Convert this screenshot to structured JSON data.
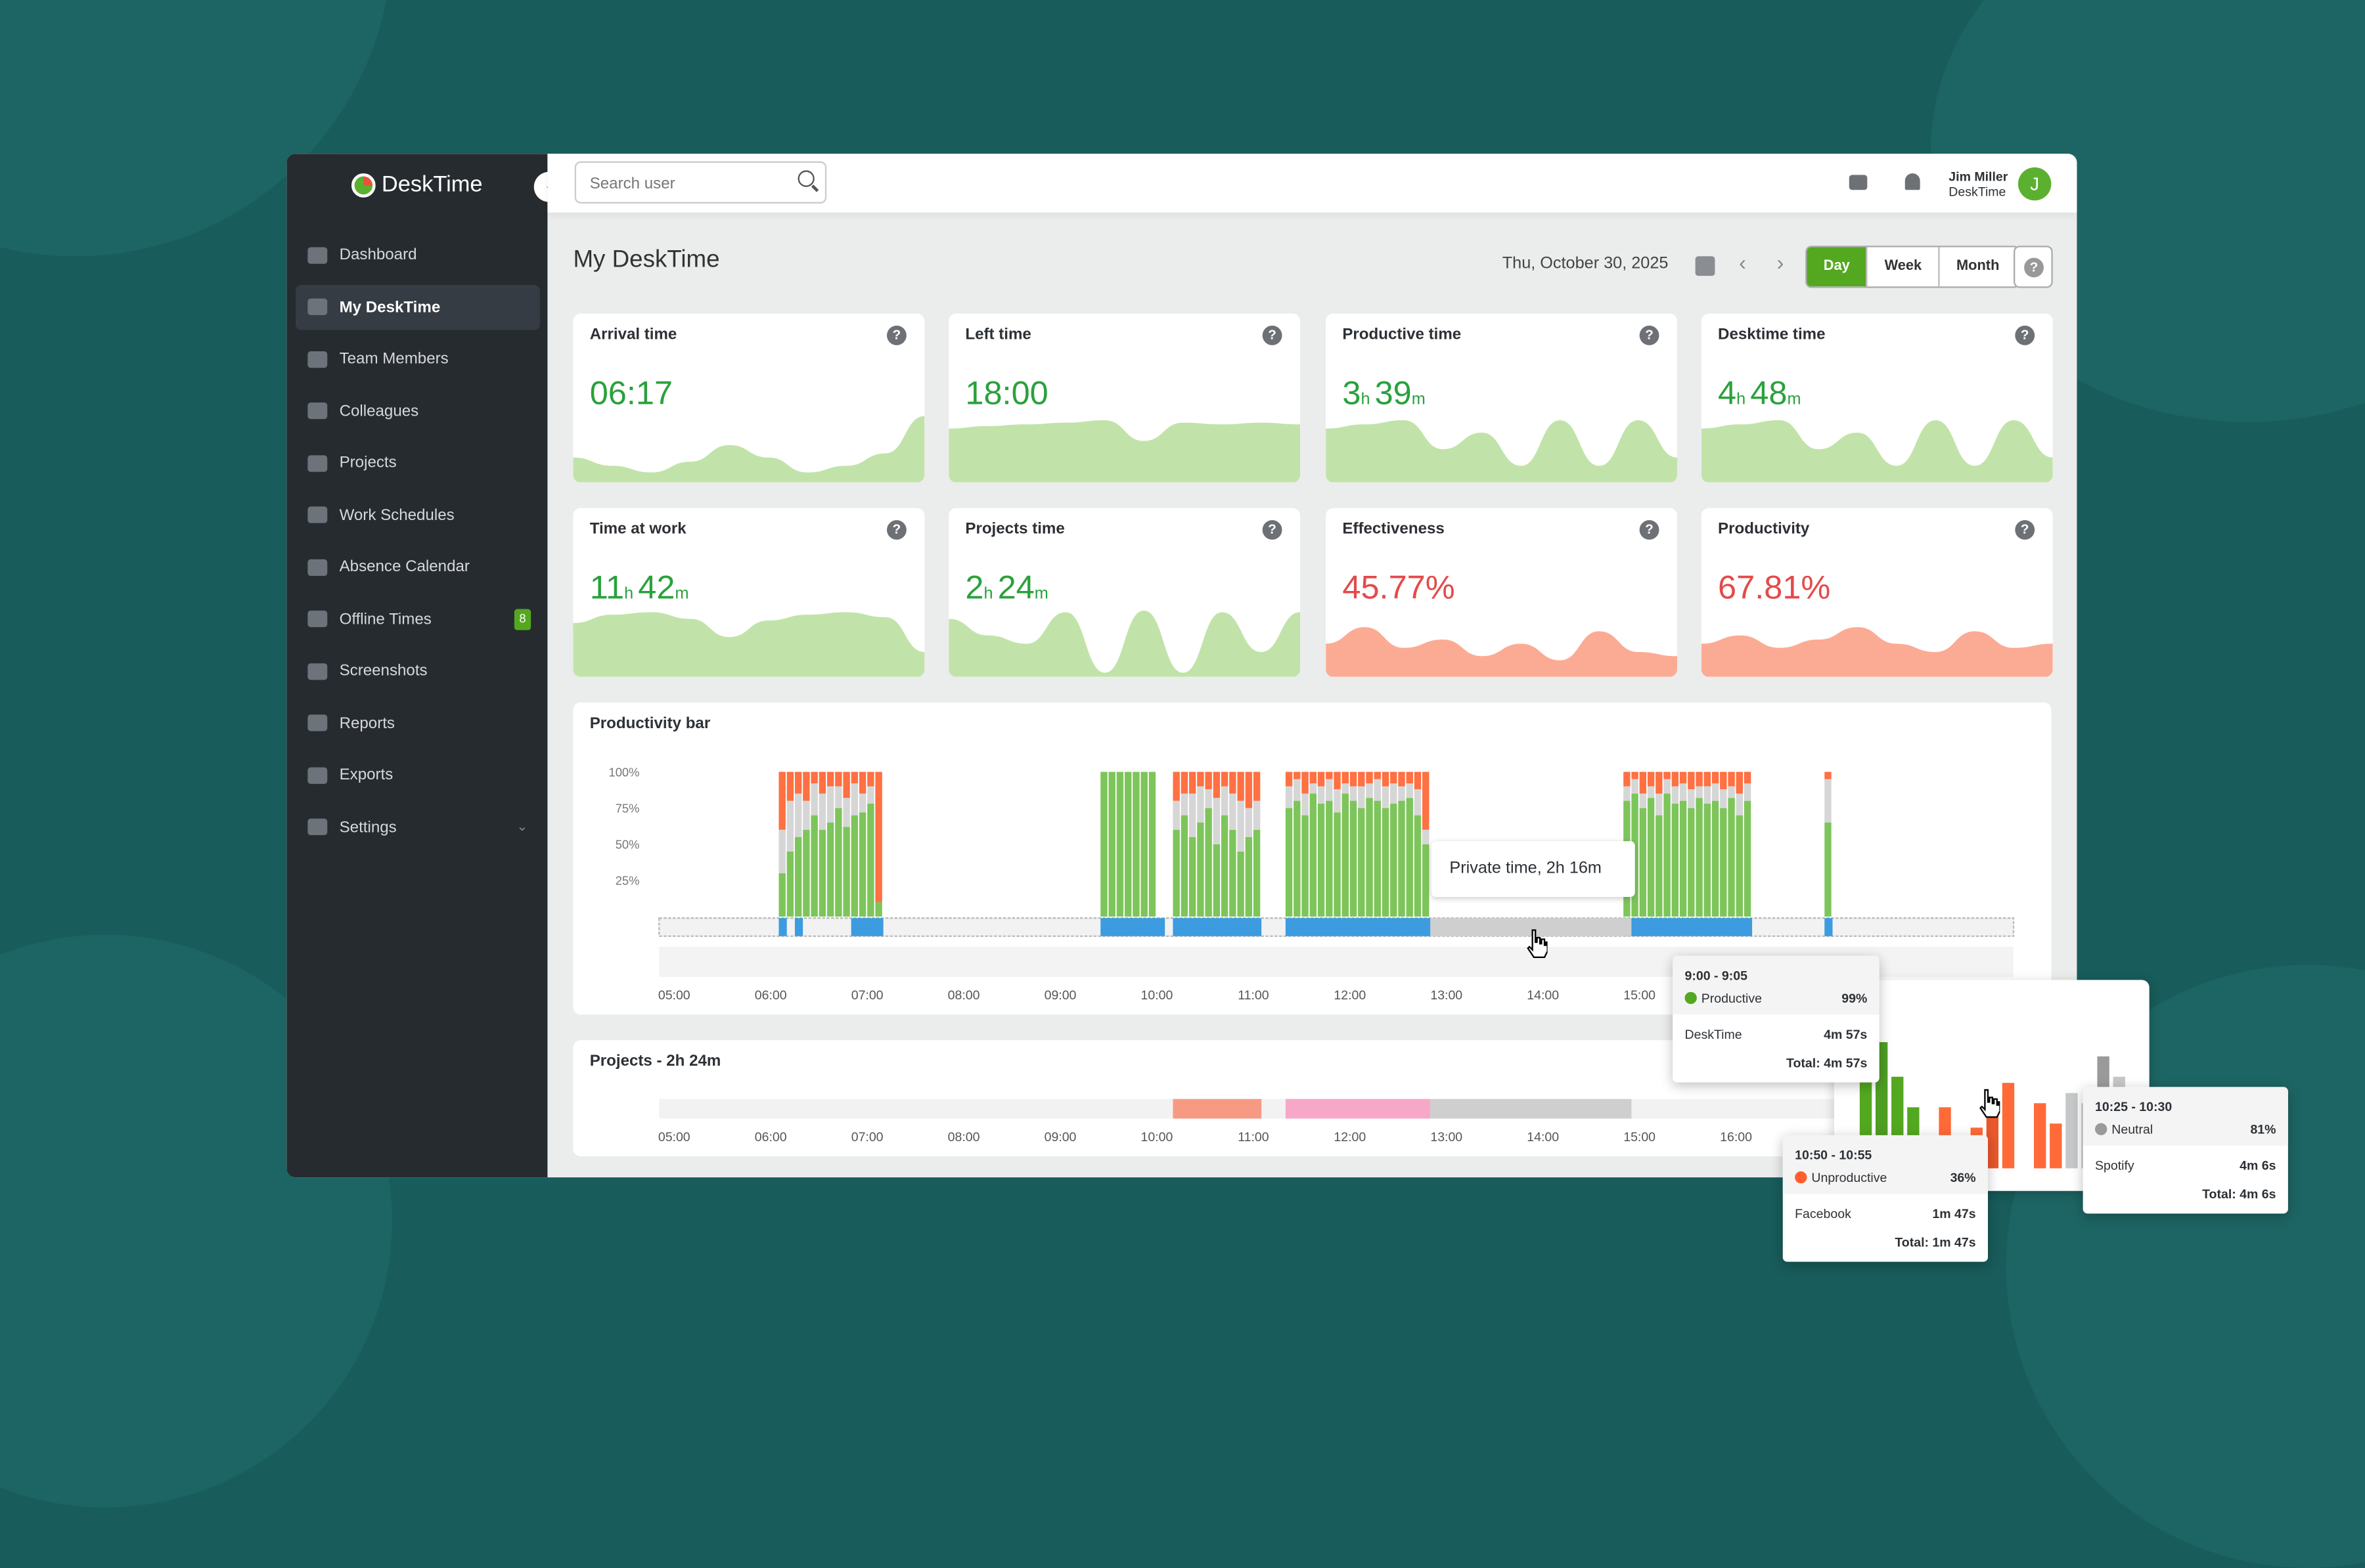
{
  "brand": "DeskTime",
  "sidebar": {
    "items": [
      {
        "label": "Dashboard",
        "icon": "bar-chart-icon"
      },
      {
        "label": "My DeskTime",
        "icon": "monitor-icon",
        "active": true
      },
      {
        "label": "Team Members",
        "icon": "users-icon"
      },
      {
        "label": "Colleagues",
        "icon": "user-circle-icon"
      },
      {
        "label": "Projects",
        "icon": "folder-icon"
      },
      {
        "label": "Work Schedules",
        "icon": "briefcase-icon"
      },
      {
        "label": "Absence Calendar",
        "icon": "calendar-icon"
      },
      {
        "label": "Offline Times",
        "icon": "clock-icon",
        "badge": "8"
      },
      {
        "label": "Screenshots",
        "icon": "screenshots-icon"
      },
      {
        "label": "Reports",
        "icon": "pie-chart-icon"
      },
      {
        "label": "Exports",
        "icon": "export-icon"
      },
      {
        "label": "Settings",
        "icon": "gear-icon",
        "expandable": true
      }
    ]
  },
  "header": {
    "search_placeholder": "Search user",
    "user_name": "Jim Miller",
    "user_company": "DeskTime",
    "avatar_letter": "J"
  },
  "page": {
    "title": "My DeskTime",
    "date": "Thu, October 30, 2025",
    "ranges": [
      "Day",
      "Week",
      "Month"
    ],
    "active_range": "Day"
  },
  "colors": {
    "accent": "#54a820",
    "productive": "#7dc55a",
    "unproductive": "#ff7043",
    "neutral": "#d6d6d6",
    "activity": "#3d9be0",
    "good_area": "#c1e3a9",
    "bad_area": "#fbab94"
  },
  "metrics": [
    {
      "title": "Arrival time",
      "value": "06:17",
      "tone": "good",
      "trend": [
        30,
        20,
        12,
        25,
        45,
        30,
        12,
        20,
        35,
        80
      ]
    },
    {
      "title": "Left time",
      "value": "18:00",
      "tone": "good",
      "trend": [
        65,
        68,
        70,
        72,
        75,
        50,
        72,
        70,
        72,
        70
      ]
    },
    {
      "title": "Productive time",
      "h": "3",
      "m": "39",
      "tone": "good",
      "trend": [
        65,
        70,
        75,
        40,
        60,
        20,
        75,
        20,
        75,
        30
      ]
    },
    {
      "title": "Desktime time",
      "h": "4",
      "m": "48",
      "tone": "good",
      "trend": [
        65,
        70,
        75,
        40,
        60,
        20,
        75,
        20,
        75,
        30
      ]
    },
    {
      "title": "Time at work",
      "h": "11",
      "m": "42",
      "tone": "good",
      "trend": [
        65,
        75,
        78,
        70,
        48,
        68,
        75,
        78,
        72,
        30
      ]
    },
    {
      "title": "Projects time",
      "h": "2",
      "m": "24",
      "tone": "good",
      "trend": [
        70,
        50,
        40,
        78,
        5,
        80,
        5,
        78,
        30,
        78
      ]
    },
    {
      "title": "Effectiveness",
      "value": "45.77%",
      "tone": "bad",
      "trend": [
        40,
        60,
        35,
        45,
        25,
        40,
        20,
        55,
        30,
        25
      ]
    },
    {
      "title": "Productivity",
      "value": "67.81%",
      "tone": "bad",
      "trend": [
        40,
        50,
        35,
        45,
        60,
        40,
        30,
        55,
        35,
        40
      ]
    }
  ],
  "productivity": {
    "title": "Productivity bar",
    "y_ticks": [
      "100%",
      "75%",
      "50%",
      "25%"
    ],
    "x_ticks": [
      "05:00",
      "06:00",
      "07:00",
      "08:00",
      "09:00",
      "10:00",
      "11:00",
      "12:00",
      "13:00",
      "14:00",
      "15:00",
      "16:00"
    ],
    "groups": [
      {
        "start": "06:05",
        "bars": [
          [
            30,
            60
          ],
          [
            45,
            80
          ],
          [
            55,
            85
          ],
          [
            60,
            80
          ],
          [
            70,
            92
          ],
          [
            60,
            85
          ],
          [
            65,
            90
          ],
          [
            75,
            90
          ],
          [
            62,
            82
          ],
          [
            70,
            92
          ],
          [
            72,
            85
          ],
          [
            78,
            90
          ],
          [
            10,
            10
          ]
        ]
      },
      {
        "start": "09:25",
        "bars": [
          [
            100,
            100
          ],
          [
            100,
            100
          ],
          [
            100,
            100
          ],
          [
            100,
            100
          ],
          [
            100,
            100
          ],
          [
            100,
            100
          ],
          [
            100,
            100
          ]
        ]
      },
      {
        "start": "10:10",
        "bars": [
          [
            60,
            80
          ],
          [
            70,
            85
          ],
          [
            55,
            85
          ],
          [
            65,
            90
          ],
          [
            75,
            88
          ],
          [
            50,
            82
          ],
          [
            70,
            90
          ],
          [
            60,
            85
          ],
          [
            45,
            80
          ],
          [
            55,
            75
          ],
          [
            60,
            80
          ]
        ]
      },
      {
        "start": "11:20",
        "bars": [
          [
            75,
            90
          ],
          [
            80,
            95
          ],
          [
            70,
            85
          ],
          [
            85,
            92
          ],
          [
            78,
            90
          ],
          [
            80,
            95
          ],
          [
            72,
            88
          ],
          [
            85,
            92
          ],
          [
            80,
            90
          ],
          [
            75,
            90
          ],
          [
            82,
            92
          ],
          [
            80,
            95
          ],
          [
            75,
            90
          ],
          [
            78,
            92
          ],
          [
            80,
            90
          ],
          [
            82,
            92
          ],
          [
            70,
            88
          ],
          [
            50,
            60
          ]
        ]
      },
      {
        "start": "14:50",
        "bars": [
          [
            80,
            90
          ],
          [
            85,
            95
          ],
          [
            75,
            85
          ],
          [
            82,
            90
          ],
          [
            70,
            85
          ],
          [
            85,
            95
          ],
          [
            78,
            90
          ],
          [
            80,
            92
          ],
          [
            75,
            88
          ],
          [
            82,
            90
          ],
          [
            78,
            90
          ],
          [
            80,
            92
          ],
          [
            75,
            88
          ],
          [
            82,
            90
          ],
          [
            70,
            85
          ],
          [
            80,
            92
          ]
        ]
      },
      {
        "start": "16:55",
        "bars": [
          [
            65,
            95
          ]
        ]
      }
    ],
    "activity": [
      [
        "06:05",
        "06:10"
      ],
      [
        "06:15",
        "06:20"
      ],
      [
        "06:50",
        "07:10"
      ],
      [
        "09:25",
        "10:05"
      ],
      [
        "10:10",
        "11:05"
      ],
      [
        "11:20",
        "12:50"
      ],
      [
        "14:50",
        "16:10"
      ],
      [
        "16:55",
        "17:00"
      ]
    ],
    "private": {
      "start": "12:50",
      "end": "14:55",
      "label": "Private time, 2h 16m"
    }
  },
  "projects": {
    "title": "Projects - 2h 24m",
    "blocks": [
      [
        "10:10",
        "11:05",
        "#f79a84"
      ],
      [
        "11:20",
        "12:50",
        "#f7a8c8"
      ],
      [
        "12:50",
        "14:55",
        "#cfcfcf"
      ]
    ]
  },
  "tooltips": [
    {
      "time": "9:00 - 9:05",
      "category": "Productive",
      "pct": "99%",
      "color": "#54a820",
      "app": "DeskTime",
      "dur": "4m 57s",
      "total": "Total: 4m 57s"
    },
    {
      "time": "10:50 - 10:55",
      "category": "Unproductive",
      "pct": "36%",
      "color": "#ff5f2e",
      "app": "Facebook",
      "dur": "1m 47s",
      "total": "Total: 1m 47s"
    },
    {
      "time": "10:25 - 10:30",
      "category": "Neutral",
      "pct": "81%",
      "color": "#9a9a9a",
      "app": "Spotify",
      "dur": "4m 6s",
      "total": "Total: 4m 6s"
    }
  ],
  "mini_chart": {
    "bars": [
      [
        75,
        "#54a820"
      ],
      [
        62,
        "#4e9e24"
      ],
      [
        45,
        "#54a820"
      ],
      [
        30,
        "#54a820"
      ],
      [
        0,
        ""
      ],
      [
        30,
        "#ff6a38"
      ],
      [
        0,
        ""
      ],
      [
        20,
        "#ff6a38"
      ],
      [
        30,
        "#e8582c"
      ],
      [
        42,
        "#ff6a38"
      ],
      [
        0,
        ""
      ],
      [
        32,
        "#ff6a38"
      ],
      [
        22,
        "#ff6a38"
      ],
      [
        37,
        "#c5c7c9"
      ],
      [
        32,
        "#c5c7c9"
      ],
      [
        55,
        "#9a9a9a"
      ],
      [
        45,
        "#c5c7c9"
      ]
    ]
  }
}
